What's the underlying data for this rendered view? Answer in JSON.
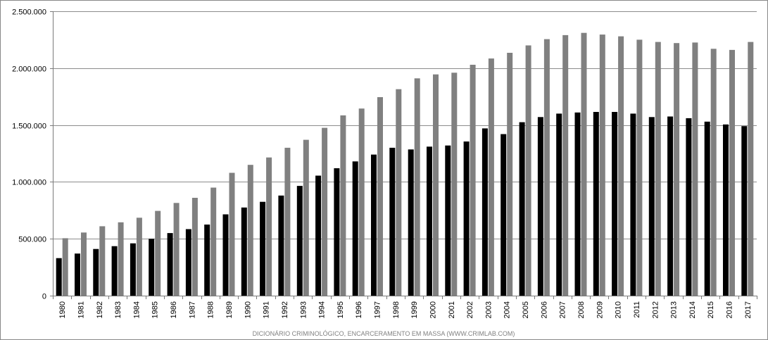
{
  "chart_data": {
    "type": "bar",
    "title": "",
    "xlabel": "",
    "ylabel": "",
    "ylim": [
      0,
      2500000
    ],
    "y_ticks": [
      0,
      500000,
      1000000,
      1500000,
      2000000,
      2500000
    ],
    "y_tick_labels": [
      "0",
      "500.000",
      "1.000.000",
      "1.500.000",
      "2.000.000",
      "2.500.000"
    ],
    "grid": true,
    "legend": "none",
    "categories": [
      "1980",
      "1981",
      "1982",
      "1983",
      "1984",
      "1985",
      "1986",
      "1987",
      "1988",
      "1989",
      "1990",
      "1991",
      "1992",
      "1993",
      "1994",
      "1995",
      "1996",
      "1997",
      "1998",
      "1999",
      "2000",
      "2001",
      "2002",
      "2003",
      "2004",
      "2005",
      "2006",
      "2007",
      "2008",
      "2009",
      "2010",
      "2011",
      "2012",
      "2013",
      "2014",
      "2015",
      "2016",
      "2017"
    ],
    "series": [
      {
        "color": "#000000",
        "values": [
          330000,
          370000,
          410000,
          435000,
          460000,
          500000,
          550000,
          585000,
          625000,
          715000,
          775000,
          825000,
          880000,
          965000,
          1055000,
          1120000,
          1180000,
          1240000,
          1300000,
          1285000,
          1310000,
          1320000,
          1355000,
          1470000,
          1420000,
          1525000,
          1570000,
          1600000,
          1610000,
          1615000,
          1615000,
          1600000,
          1570000,
          1575000,
          1560000,
          1530000,
          1505000,
          1490000
        ]
      },
      {
        "color": "#808080",
        "values": [
          505000,
          555000,
          610000,
          645000,
          685000,
          745000,
          815000,
          860000,
          950000,
          1080000,
          1150000,
          1215000,
          1300000,
          1370000,
          1475000,
          1585000,
          1645000,
          1745000,
          1815000,
          1910000,
          1945000,
          1960000,
          2030000,
          2085000,
          2135000,
          2200000,
          2255000,
          2290000,
          2310000,
          2295000,
          2280000,
          2250000,
          2230000,
          2220000,
          2225000,
          2170000,
          2160000,
          2230000
        ]
      }
    ],
    "caption": "DICIONÁRIO CRIMINOLÓGICO, ENCARCERAMENTO EM MASSA (WWW.CRIMLAB.COM)"
  }
}
